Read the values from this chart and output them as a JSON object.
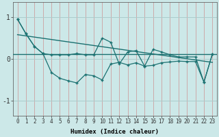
{
  "xlabel": "Humidex (Indice chaleur)",
  "bg_color": "#cce8e8",
  "line_color": "#1a7070",
  "grid_color": "#aacccc",
  "xlim": [
    -0.5,
    23.5
  ],
  "ylim": [
    -1.35,
    1.35
  ],
  "x_ticks": [
    0,
    1,
    2,
    3,
    4,
    5,
    6,
    7,
    8,
    9,
    10,
    11,
    12,
    13,
    14,
    15,
    16,
    17,
    18,
    19,
    20,
    21,
    22,
    23
  ],
  "yticks": [
    -1,
    0,
    1
  ],
  "line_zigzag_x": [
    0,
    1,
    2,
    3,
    4,
    5,
    6,
    7,
    8,
    9,
    10,
    11,
    12,
    13,
    14,
    15,
    16,
    17,
    18,
    19,
    20,
    21,
    22,
    23
  ],
  "line_zigzag_y": [
    0.95,
    0.6,
    0.3,
    0.13,
    -0.32,
    -0.46,
    -0.52,
    -0.57,
    -0.37,
    -0.4,
    -0.5,
    -0.12,
    -0.08,
    -0.14,
    -0.09,
    -0.17,
    -0.15,
    -0.09,
    -0.07,
    -0.05,
    -0.06,
    -0.06,
    -0.55,
    0.12
  ],
  "line_peaks_x": [
    0,
    1,
    2,
    3,
    4,
    5,
    6,
    7,
    8,
    9,
    10,
    11,
    12,
    13,
    14,
    15,
    16,
    17,
    18,
    19,
    20,
    21,
    22,
    23
  ],
  "line_peaks_y": [
    0.95,
    0.6,
    0.3,
    0.13,
    0.1,
    0.1,
    0.1,
    0.13,
    0.1,
    0.1,
    0.5,
    0.4,
    -0.12,
    0.17,
    0.2,
    -0.17,
    0.23,
    0.17,
    0.1,
    0.05,
    0.05,
    0.05,
    -0.55,
    0.12
  ],
  "trend_x": [
    0,
    23
  ],
  "trend_y": [
    0.58,
    -0.08
  ],
  "hline_y": 0.12
}
